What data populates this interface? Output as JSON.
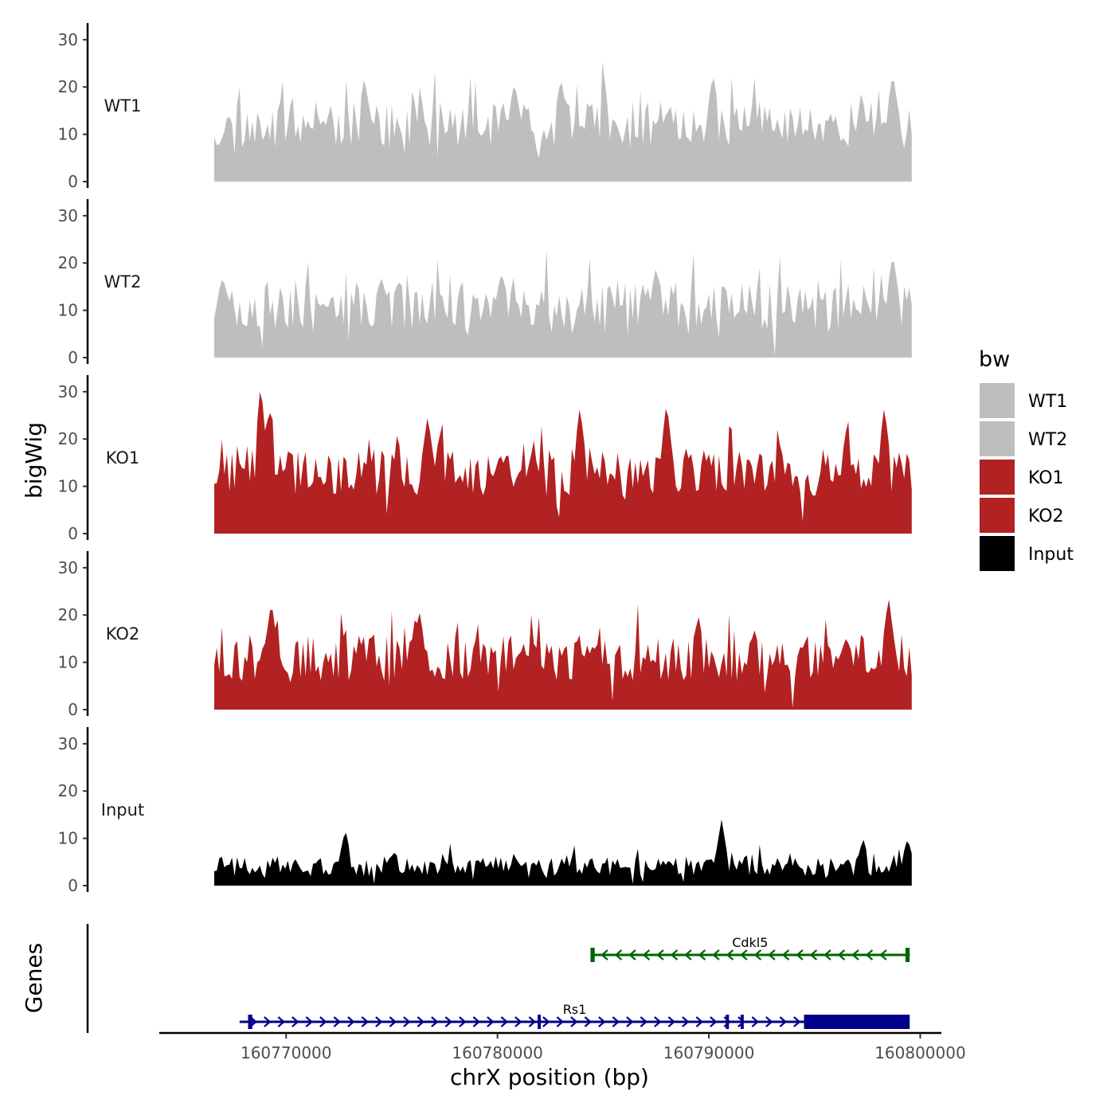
{
  "chart_data": {
    "type": "area",
    "title": "",
    "xlabel": "chrX position (bp)",
    "ylabel": "bigWig",
    "genes_label": "Genes",
    "xlim": [
      160764000,
      160801000
    ],
    "data_start": 160766600,
    "data_end": 160799600,
    "ylim": [
      0,
      33
    ],
    "yticks": [
      0,
      10,
      20,
      30
    ],
    "x_ticks": [
      160770000,
      160780000,
      160790000,
      160800000
    ],
    "x_tick_labels": [
      "160770000",
      "160780000",
      "160790000",
      "160800000"
    ],
    "legend": {
      "title": "bw",
      "entries": [
        {
          "label": "WT1",
          "color": "#bebebe"
        },
        {
          "label": "WT2",
          "color": "#bebebe"
        },
        {
          "label": "KO1",
          "color": "#b22222"
        },
        {
          "label": "KO2",
          "color": "#b22222"
        },
        {
          "label": "Input",
          "color": "#000000"
        }
      ]
    },
    "series": [
      {
        "name": "WT1",
        "color": "#bebebe",
        "seed": 11,
        "base": 12,
        "amp": 5,
        "spike": 9,
        "peaks": [
          [
            160773700,
            22
          ],
          [
            160780800,
            21
          ],
          [
            160783000,
            22
          ],
          [
            160790200,
            23
          ],
          [
            160798700,
            23
          ]
        ]
      },
      {
        "name": "WT2",
        "color": "#bebebe",
        "seed": 23,
        "base": 11,
        "amp": 5,
        "spike": 8,
        "peaks": [
          [
            160767000,
            17
          ],
          [
            160774500,
            17
          ],
          [
            160780200,
            18
          ],
          [
            160787500,
            19
          ],
          [
            160798700,
            22
          ]
        ]
      },
      {
        "name": "KO1",
        "color": "#b22222",
        "seed": 37,
        "base": 13,
        "amp": 5,
        "spike": 8,
        "peaks": [
          [
            160768800,
            32
          ],
          [
            160769200,
            27
          ],
          [
            160776700,
            25
          ],
          [
            160783900,
            27
          ],
          [
            160788000,
            28
          ],
          [
            160798300,
            27
          ]
        ]
      },
      {
        "name": "KO2",
        "color": "#b22222",
        "seed": 53,
        "base": 11,
        "amp": 5,
        "spike": 8,
        "peaks": [
          [
            160769300,
            23
          ],
          [
            160776300,
            21
          ],
          [
            160789500,
            20
          ],
          [
            160796500,
            15
          ],
          [
            160798500,
            24
          ]
        ]
      },
      {
        "name": "Input",
        "color": "#000000",
        "seed": 71,
        "base": 4,
        "amp": 2,
        "spike": 4,
        "peaks": [
          [
            160772800,
            12
          ],
          [
            160790600,
            14
          ],
          [
            160797300,
            10
          ],
          [
            160799400,
            10
          ]
        ]
      }
    ],
    "genes": [
      {
        "name": "Cdkl5",
        "strand": "-",
        "color": "#006400",
        "start": 160784400,
        "end": 160799500,
        "exons": [
          [
            160784400,
            160784600
          ],
          [
            160799300,
            160799500
          ]
        ]
      },
      {
        "name": "Rs1",
        "strand": "+",
        "color": "#00008b",
        "start": 160767800,
        "end": 160799500,
        "exons": [
          [
            160768200,
            160768400
          ],
          [
            160781900,
            160782000
          ],
          [
            160790800,
            160790900
          ],
          [
            160791500,
            160791600
          ],
          [
            160794500,
            160799500
          ]
        ]
      }
    ]
  }
}
